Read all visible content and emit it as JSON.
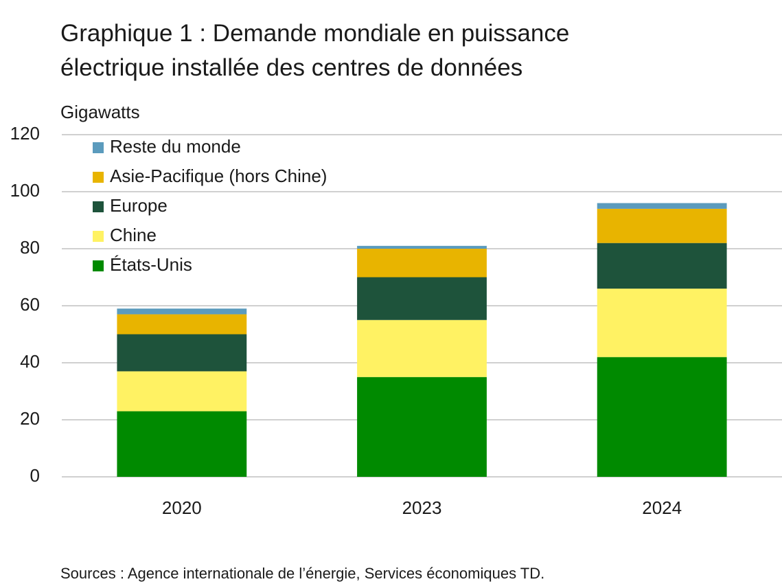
{
  "chart_data": {
    "type": "stacked_bar",
    "title": "Graphique 1 : Demande mondiale en puissance électrique installée des centres de données",
    "y_label": "Gigawatts",
    "source": "Sources : Agence internationale de l’énergie, Services économiques TD.",
    "categories": [
      "2020",
      "2023",
      "2024"
    ],
    "series": [
      {
        "name": "États-Unis",
        "color": "#008a00",
        "values": [
          23,
          35,
          42
        ]
      },
      {
        "name": "Chine",
        "color": "#fff263",
        "values": [
          14,
          20,
          24
        ]
      },
      {
        "name": "Europe",
        "color": "#1e533b",
        "values": [
          13,
          15,
          16
        ]
      },
      {
        "name": "Asie-Pacifique (hors Chine)",
        "color": "#e8b400",
        "values": [
          7,
          10,
          12
        ]
      },
      {
        "name": "Reste du monde",
        "color": "#5b9bbd",
        "values": [
          2,
          1,
          2
        ]
      }
    ],
    "ylim": [
      0,
      120
    ],
    "yticks": [
      0,
      20,
      40,
      60,
      80,
      100,
      120
    ],
    "grid": true,
    "legend": "upper left"
  }
}
